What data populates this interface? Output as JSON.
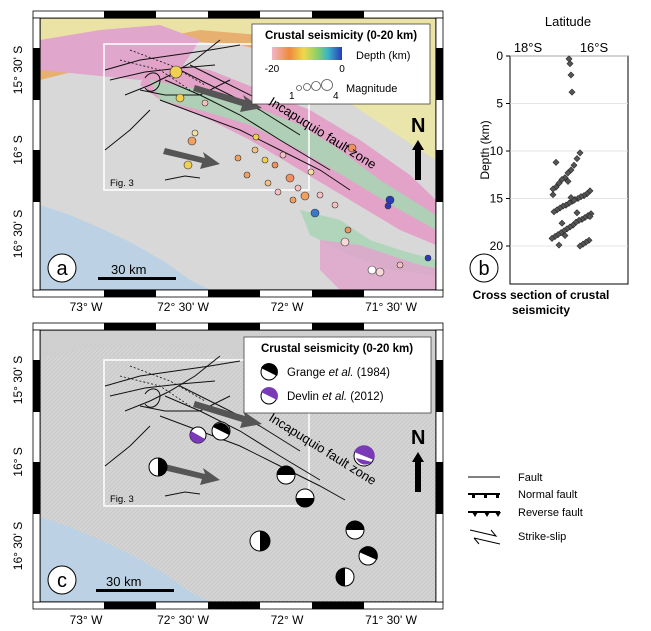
{
  "panel_a": {
    "label": "a",
    "legend_title": "Crustal seismicity (0-20 km)",
    "depth_label": "Depth (km)",
    "depth_min": "-20",
    "depth_max": "0",
    "magnitude_label": "Magnitude",
    "mag_min": "1",
    "mag_max": "4",
    "fault_zone": "Incapuquio fault zone",
    "fig_ref": "Fig. 3",
    "north": "N",
    "scale": "30 km",
    "lat_labels": [
      "15° 30' S",
      "16° S",
      "16° 30' S"
    ],
    "lon_labels": [
      "73° W",
      "72° 30' W",
      "72° W",
      "71° 30' W"
    ]
  },
  "panel_b": {
    "label": "b",
    "top_title": "Latitude",
    "lat_ticks": [
      "18°S",
      "16°S"
    ],
    "ylabel": "Depth (km)",
    "yticks": [
      "0",
      "5",
      "10",
      "15",
      "20"
    ],
    "caption_line1": "Cross section of crustal",
    "caption_line2": "seismicity"
  },
  "panel_c": {
    "label": "c",
    "legend_title": "Crustal seismicity (0-20 km)",
    "legend_entry1_a": "Grange ",
    "legend_entry1_b": "et al.",
    "legend_entry1_c": " (1984)",
    "legend_entry2_a": "Devlin ",
    "legend_entry2_b": "et al.",
    "legend_entry2_c": " (2012)",
    "fault_zone": "Incapuquio fault zone",
    "fig_ref": "Fig. 3",
    "north": "N",
    "scale": "30 km",
    "lat_labels": [
      "15° 30' S",
      "16° S",
      "16° 30' S"
    ],
    "lon_labels": [
      "73° W",
      "72° 30' W",
      "72° W",
      "71° 30' W"
    ]
  },
  "fault_legend": {
    "fault": "Fault",
    "normal": "Normal fault",
    "reverse": "Reverse fault",
    "strike_slip": "Strike-slip"
  },
  "colors": {
    "ocean": "#bcd2e4",
    "land": "#d9d9d9",
    "geo_pink": "#e3a3c8",
    "geo_green": "#a8d4b4",
    "geo_yellow": "#ebe6a8",
    "geo_orange": "#e8b878",
    "devlin_purple": "#7a3ab8"
  },
  "chart_data": {
    "type": "scatter",
    "title": "Cross section of crustal seismicity",
    "xlabel": "Latitude",
    "ylabel": "Depth (km)",
    "ylim": [
      0,
      24
    ],
    "series": [
      {
        "values": [
          0.3,
          0.8,
          2,
          3.8,
          10.2,
          10.8,
          11.5,
          12,
          12.3,
          12.8,
          13,
          13.4,
          13.8,
          14,
          14.2,
          14.5,
          14.7,
          14.8,
          15,
          15.1,
          15.3,
          15.5,
          15.7,
          15.8,
          16,
          16.2,
          16.4,
          16.6,
          16.8,
          17,
          17.2,
          17.3,
          17.5,
          17.8,
          18,
          18.2,
          18.4,
          18.6,
          18.8,
          19,
          19.2,
          19.4,
          19.6,
          19.8,
          20,
          16.5,
          15.2,
          14.9,
          13.2,
          18.9,
          17.6,
          19.9,
          11.2,
          14.6,
          16.9
        ]
      }
    ]
  }
}
